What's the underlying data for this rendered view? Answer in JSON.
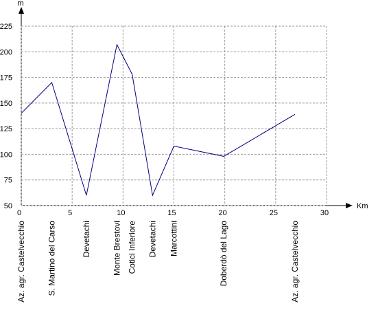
{
  "chart_data": {
    "type": "line",
    "y_label": "m",
    "x_label": "Km",
    "x": [
      0,
      3.0,
      6.4,
      9.4,
      10.9,
      12.9,
      15.0,
      19.9,
      26.9
    ],
    "series": [
      {
        "color": "#000080",
        "values": [
          140,
          170,
          60,
          207,
          178,
          60,
          108,
          98,
          139
        ]
      }
    ],
    "point_labels": [
      "Az. agr. Castelvecchio",
      "S. Martino del Carso",
      "Devetachi",
      "Monte Brestovi",
      "Cotici Inferiore",
      "Devetachi",
      "Marcottini",
      "Doberdò del Lago",
      "Az. agr. Castelvecchio"
    ],
    "xlim": [
      0,
      30
    ],
    "ylim": [
      50,
      225
    ],
    "xticks": [
      0,
      5,
      10,
      15,
      20,
      25,
      30
    ],
    "yticks": [
      50,
      75,
      100,
      125,
      150,
      175,
      200,
      225
    ],
    "grid": true
  }
}
